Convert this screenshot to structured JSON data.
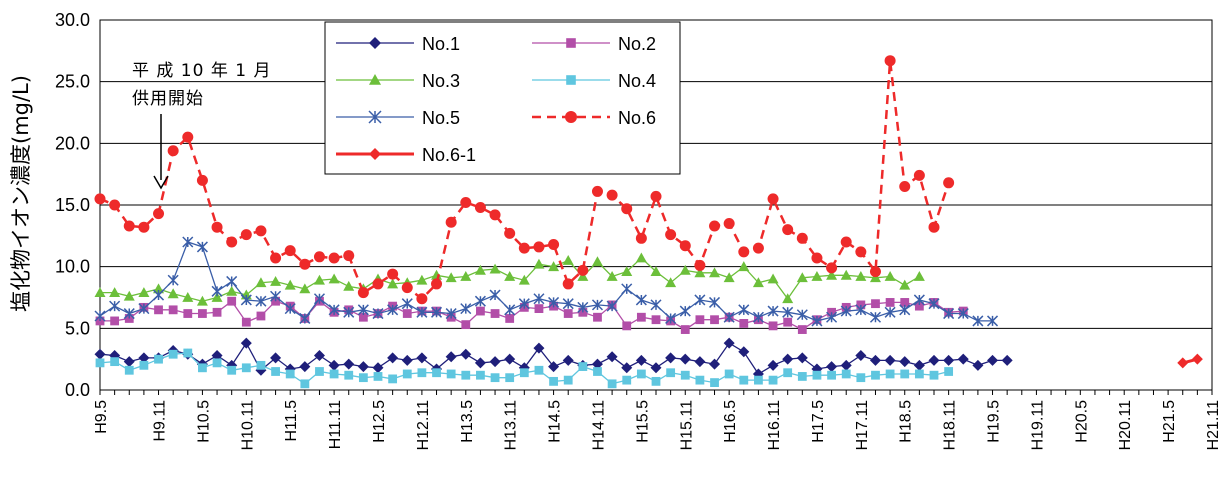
{
  "chart_data": {
    "type": "line",
    "title": "",
    "ylabel": "塩化物イオン濃度(mg/L)",
    "xlabel": "",
    "ylim": [
      0,
      30
    ],
    "yticks": [
      "0.0",
      "5.0",
      "10.0",
      "15.0",
      "20.0",
      "25.0",
      "30.0"
    ],
    "grid": "horizontal",
    "legend_position": "top-left inside, two columns",
    "annotation": {
      "line1": "平 成 10 年 1 月",
      "line2": "供用開始",
      "arrow": "down"
    },
    "x_tick_labels": [
      "H9.5",
      "H9.11",
      "H10.5",
      "H10.11",
      "H11.5",
      "H11.11",
      "H12.5",
      "H12.11",
      "H13.5",
      "H13.11",
      "H14.5",
      "H14.11",
      "H15.5",
      "H15.11",
      "H16.5",
      "H16.11",
      "H17.5",
      "H17.11",
      "H18.5",
      "H18.11",
      "H19.5",
      "H19.11",
      "H20.5",
      "H20.11",
      "H21.5",
      "H21.11"
    ],
    "x_tick_index": [
      0,
      4,
      7,
      10,
      13,
      16,
      19,
      22,
      25,
      28,
      31,
      34,
      37,
      40,
      43,
      46,
      49,
      52,
      55,
      58,
      61,
      64,
      67,
      70,
      73,
      76
    ],
    "n_points": 77,
    "series": [
      {
        "name": "No.1",
        "color": "#1f1f7a",
        "marker": "diamond",
        "line": "solid",
        "values": [
          2.9,
          2.8,
          2.3,
          2.6,
          2.6,
          3.2,
          2.9,
          2.1,
          2.8,
          2.0,
          3.8,
          1.6,
          2.6,
          1.7,
          1.9,
          2.8,
          2.0,
          2.1,
          1.9,
          1.8,
          2.6,
          2.4,
          2.6,
          1.7,
          2.7,
          2.9,
          2.2,
          2.3,
          2.5,
          1.8,
          3.4,
          1.9,
          2.4,
          2.0,
          2.1,
          2.7,
          1.8,
          2.4,
          1.8,
          2.6,
          2.5,
          2.3,
          2.1,
          3.8,
          3.1,
          1.3,
          2.0,
          2.5,
          2.6,
          1.7,
          1.9,
          2.0,
          2.8,
          2.4,
          2.4,
          2.3,
          2.0,
          2.4,
          2.4,
          2.5,
          2.0,
          2.4,
          2.4
        ]
      },
      {
        "name": "No.2",
        "color": "#b24ea8",
        "marker": "square",
        "line": "solid",
        "values": [
          5.6,
          5.6,
          5.8,
          6.7,
          6.5,
          6.5,
          6.2,
          6.2,
          6.3,
          7.2,
          5.5,
          6.0,
          7.2,
          6.8,
          5.8,
          7.2,
          6.3,
          6.5,
          5.9,
          6.2,
          6.8,
          6.2,
          6.4,
          6.4,
          5.9,
          5.3,
          6.4,
          6.2,
          5.8,
          6.7,
          6.6,
          6.8,
          6.2,
          6.3,
          5.9,
          6.9,
          5.2,
          5.9,
          5.7,
          5.6,
          4.9,
          5.7,
          5.7,
          5.9,
          5.4,
          5.7,
          5.2,
          5.5,
          4.9,
          5.7,
          6.3,
          6.7,
          6.9,
          7.0,
          7.1,
          7.1,
          6.8,
          7.1,
          6.3,
          6.4
        ]
      },
      {
        "name": "No.3",
        "color": "#6cbf3a",
        "marker": "triangle",
        "line": "solid",
        "values": [
          7.9,
          7.9,
          7.6,
          7.9,
          8.2,
          7.8,
          7.5,
          7.2,
          7.5,
          8.0,
          7.7,
          8.7,
          8.8,
          8.5,
          8.2,
          8.9,
          9.0,
          8.4,
          8.2,
          9.0,
          8.6,
          8.7,
          8.9,
          9.3,
          9.1,
          9.2,
          9.7,
          9.8,
          9.2,
          8.9,
          10.2,
          10.0,
          10.5,
          9.2,
          10.4,
          9.2,
          9.6,
          10.7,
          9.6,
          8.7,
          9.7,
          9.5,
          9.5,
          9.1,
          10.0,
          8.7,
          9.0,
          7.4,
          9.1,
          9.2,
          9.3,
          9.3,
          9.2,
          9.1,
          9.2,
          8.5,
          9.2
        ]
      },
      {
        "name": "No.4",
        "color": "#5fc6df",
        "marker": "square",
        "line": "solid",
        "values": [
          2.2,
          2.3,
          1.6,
          2.0,
          2.5,
          2.9,
          3.0,
          1.8,
          2.2,
          1.6,
          1.8,
          2.0,
          1.5,
          1.3,
          0.5,
          1.5,
          1.3,
          1.2,
          1.0,
          1.1,
          0.9,
          1.3,
          1.4,
          1.4,
          1.3,
          1.2,
          1.2,
          1.0,
          1.0,
          1.4,
          1.6,
          0.7,
          0.8,
          1.9,
          1.5,
          0.5,
          0.8,
          1.3,
          0.7,
          1.4,
          1.2,
          0.8,
          0.6,
          1.3,
          0.8,
          0.8,
          0.8,
          1.4,
          1.1,
          1.2,
          1.2,
          1.3,
          1.0,
          1.2,
          1.3,
          1.3,
          1.3,
          1.2,
          1.5
        ]
      },
      {
        "name": "No.5",
        "color": "#3a5ea8",
        "marker": "star",
        "line": "solid",
        "values": [
          6.0,
          6.8,
          6.2,
          6.6,
          7.7,
          8.9,
          12.0,
          11.6,
          8.0,
          8.8,
          7.3,
          7.2,
          7.6,
          6.6,
          5.8,
          7.4,
          6.5,
          6.3,
          6.5,
          6.2,
          6.5,
          7.0,
          6.3,
          6.3,
          6.2,
          6.6,
          7.2,
          7.7,
          6.5,
          7.0,
          7.4,
          7.1,
          7.0,
          6.7,
          6.9,
          6.8,
          8.2,
          7.3,
          6.9,
          5.8,
          6.4,
          7.3,
          7.1,
          5.9,
          6.5,
          5.9,
          6.4,
          6.3,
          6.1,
          5.6,
          5.9,
          6.4,
          6.5,
          5.9,
          6.3,
          6.5,
          7.3,
          7.0,
          6.2,
          6.2,
          5.6,
          5.6
        ]
      },
      {
        "name": "No.6",
        "color": "#ee2a2a",
        "marker": "circle",
        "line": "dashed",
        "values": [
          15.5,
          15.0,
          13.3,
          13.2,
          14.3,
          19.4,
          20.5,
          17.0,
          13.2,
          12.0,
          12.6,
          12.9,
          10.7,
          11.3,
          10.2,
          10.8,
          10.7,
          10.9,
          7.9,
          8.6,
          9.4,
          8.3,
          7.4,
          8.6,
          13.6,
          15.2,
          14.8,
          14.2,
          12.7,
          11.5,
          11.6,
          11.8,
          8.6,
          9.7,
          16.1,
          15.8,
          14.7,
          12.3,
          15.7,
          12.6,
          11.7,
          10.1,
          13.3,
          13.5,
          11.2,
          11.5,
          15.5,
          13.0,
          12.3,
          10.7,
          9.9,
          12.0,
          11.2,
          9.6,
          26.7,
          16.5,
          17.4,
          13.2,
          16.8
        ]
      },
      {
        "name": "No.6-1",
        "color": "#ee2a2a",
        "marker": "diamond",
        "line": "solid",
        "values": [
          2.2,
          2.5
        ]
      }
    ],
    "series_x_start": [
      0,
      0,
      0,
      0,
      0,
      0,
      74
    ]
  }
}
